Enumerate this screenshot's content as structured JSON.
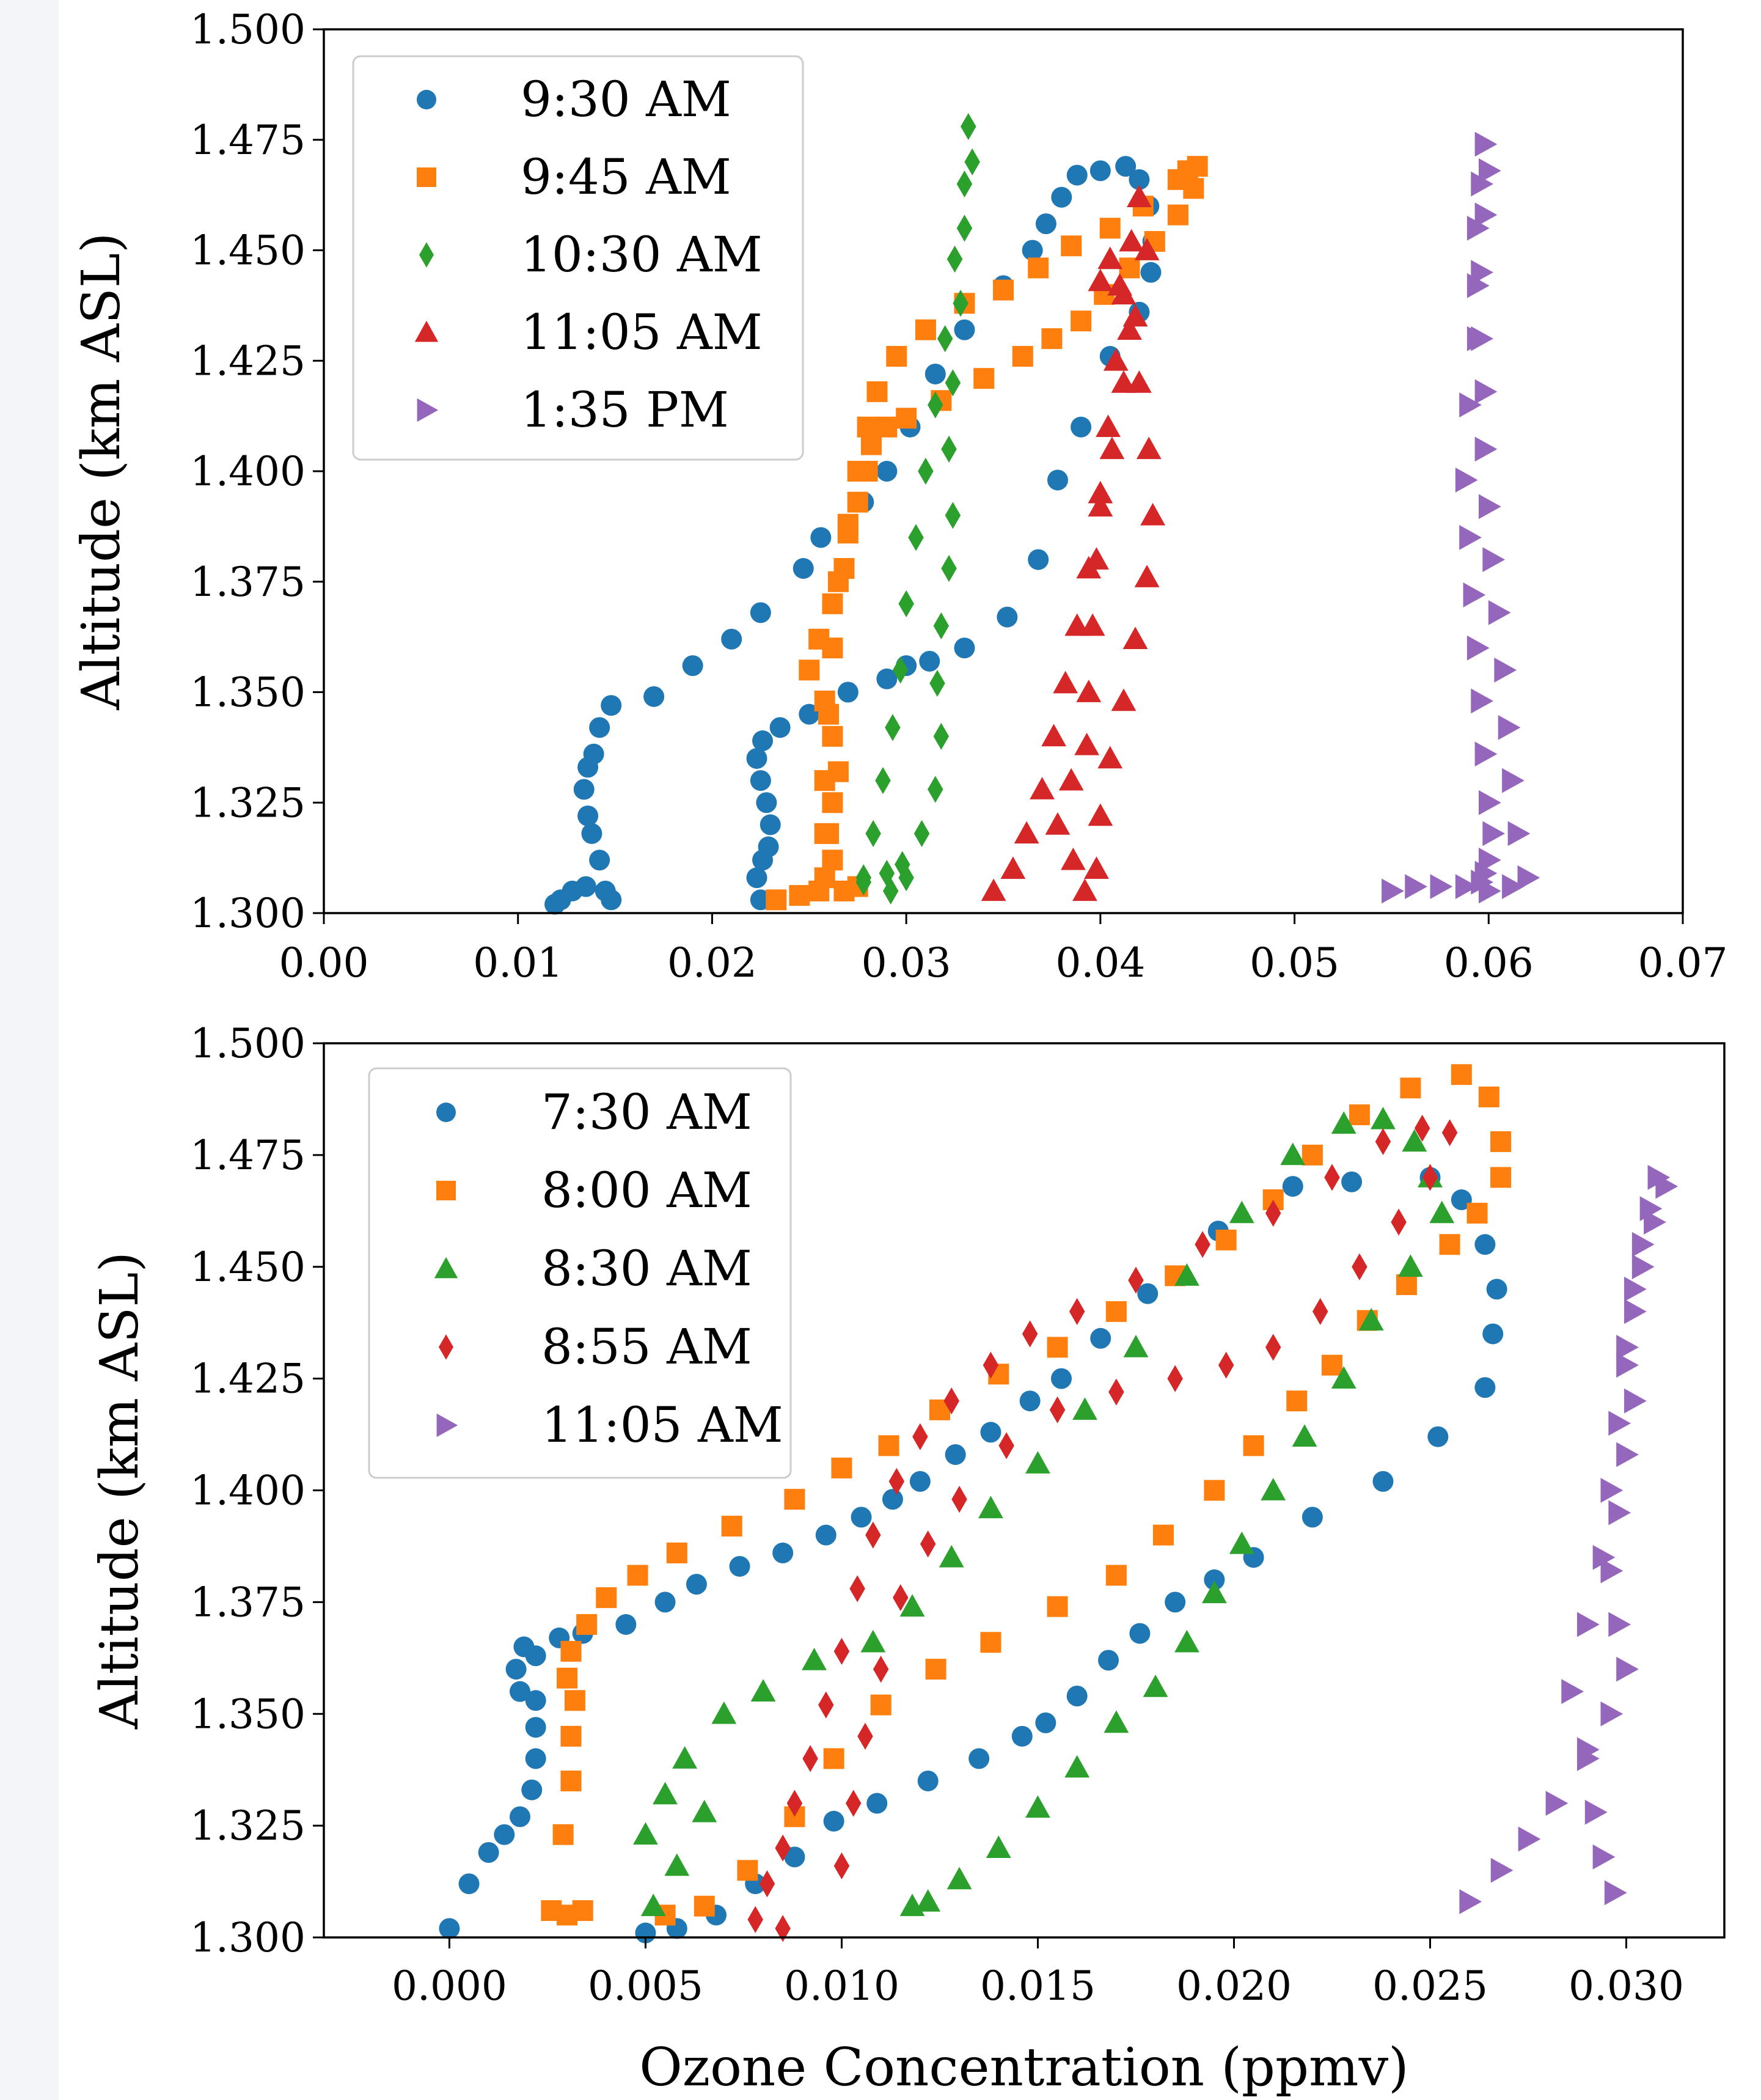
{
  "colors": {
    "blue": "#1f77b4",
    "orange": "#ff7f0e",
    "green": "#2ca02c",
    "red": "#d62728",
    "purple": "#9467bd"
  },
  "chart_data": [
    {
      "type": "scatter",
      "title": "",
      "xlabel": "",
      "ylabel": "Altitude (km ASL)",
      "xlim": [
        0.0,
        0.07
      ],
      "ylim": [
        1.3,
        1.5
      ],
      "xticks": [
        "0.00",
        "0.01",
        "0.02",
        "0.03",
        "0.04",
        "0.05",
        "0.06",
        "0.07"
      ],
      "yticks": [
        "1.300",
        "1.325",
        "1.350",
        "1.375",
        "1.400",
        "1.425",
        "1.450",
        "1.475",
        "1.500"
      ],
      "grid": false,
      "legend_position": "top-left",
      "series": [
        {
          "name": "9:30 AM",
          "marker": "circle",
          "color": "#1f77b4",
          "x": [
            0.0119,
            0.0122,
            0.0128,
            0.0135,
            0.0145,
            0.0148,
            0.0142,
            0.0138,
            0.0136,
            0.0134,
            0.0136,
            0.0139,
            0.0142,
            0.0148,
            0.017,
            0.019,
            0.021,
            0.0225,
            0.0247,
            0.0256,
            0.0278,
            0.029,
            0.0302,
            0.0315,
            0.033,
            0.035,
            0.0365,
            0.0372,
            0.038,
            0.0388,
            0.04,
            0.0413,
            0.042,
            0.0425,
            0.0427,
            0.0426,
            0.042,
            0.0405,
            0.039,
            0.0378,
            0.0368,
            0.0352,
            0.033,
            0.0312,
            0.03,
            0.029,
            0.027,
            0.025,
            0.0235,
            0.0226,
            0.0223,
            0.0225,
            0.0228,
            0.023,
            0.0229,
            0.0226,
            0.0223,
            0.0225
          ],
          "y": [
            1.302,
            1.303,
            1.305,
            1.306,
            1.305,
            1.303,
            1.312,
            1.318,
            1.322,
            1.328,
            1.333,
            1.336,
            1.342,
            1.347,
            1.349,
            1.356,
            1.362,
            1.368,
            1.378,
            1.385,
            1.393,
            1.4,
            1.41,
            1.422,
            1.432,
            1.442,
            1.45,
            1.456,
            1.462,
            1.467,
            1.468,
            1.469,
            1.466,
            1.46,
            1.452,
            1.445,
            1.436,
            1.426,
            1.41,
            1.398,
            1.38,
            1.367,
            1.36,
            1.357,
            1.356,
            1.353,
            1.35,
            1.345,
            1.342,
            1.339,
            1.335,
            1.33,
            1.325,
            1.32,
            1.315,
            1.312,
            1.308,
            1.303
          ]
        },
        {
          "name": "9:45 AM",
          "marker": "square",
          "color": "#ff7f0e",
          "x": [
            0.0233,
            0.0245,
            0.0255,
            0.0268,
            0.0275,
            0.0262,
            0.026,
            0.0262,
            0.0265,
            0.0262,
            0.0258,
            0.025,
            0.0255,
            0.0262,
            0.0268,
            0.027,
            0.0275,
            0.028,
            0.0282,
            0.029,
            0.03,
            0.0318,
            0.034,
            0.036,
            0.0375,
            0.039,
            0.0402,
            0.0415,
            0.0428,
            0.044,
            0.0448,
            0.045,
            0.0445,
            0.044,
            0.0422,
            0.0405,
            0.0385,
            0.0368,
            0.035,
            0.033,
            0.031,
            0.0295,
            0.0285,
            0.028,
            0.0275,
            0.027,
            0.0265,
            0.0262,
            0.026,
            0.0258,
            0.0258,
            0.0258
          ],
          "y": [
            1.303,
            1.304,
            1.305,
            1.305,
            1.306,
            1.312,
            1.318,
            1.325,
            1.332,
            1.34,
            1.348,
            1.355,
            1.362,
            1.37,
            1.378,
            1.386,
            1.393,
            1.4,
            1.406,
            1.41,
            1.412,
            1.416,
            1.421,
            1.426,
            1.43,
            1.434,
            1.44,
            1.446,
            1.452,
            1.458,
            1.464,
            1.469,
            1.468,
            1.466,
            1.46,
            1.455,
            1.451,
            1.446,
            1.441,
            1.438,
            1.432,
            1.426,
            1.418,
            1.41,
            1.4,
            1.388,
            1.375,
            1.36,
            1.345,
            1.33,
            1.318,
            1.308
          ]
        },
        {
          "name": "10:30 AM",
          "marker": "diamond",
          "color": "#2ca02c",
          "x": [
            0.0278,
            0.029,
            0.03,
            0.0292,
            0.0298,
            0.0308,
            0.0315,
            0.0318,
            0.0316,
            0.0318,
            0.0322,
            0.0324,
            0.0322,
            0.0324,
            0.0328,
            0.033,
            0.0334,
            0.0332,
            0.033,
            0.0325,
            0.032,
            0.0315,
            0.031,
            0.0305,
            0.03,
            0.0297,
            0.0293,
            0.0288,
            0.0283,
            0.0278
          ],
          "y": [
            1.307,
            1.309,
            1.308,
            1.305,
            1.311,
            1.318,
            1.328,
            1.34,
            1.352,
            1.365,
            1.378,
            1.39,
            1.405,
            1.42,
            1.438,
            1.455,
            1.47,
            1.478,
            1.465,
            1.448,
            1.43,
            1.415,
            1.4,
            1.385,
            1.37,
            1.355,
            1.342,
            1.33,
            1.318,
            1.308
          ]
        },
        {
          "name": "11:05 AM",
          "marker": "triangle-up",
          "color": "#d62728",
          "x": [
            0.0345,
            0.0355,
            0.0362,
            0.037,
            0.0376,
            0.0382,
            0.0388,
            0.0394,
            0.04,
            0.0406,
            0.0412,
            0.0418,
            0.0424,
            0.042,
            0.0416,
            0.0412,
            0.0408,
            0.0404,
            0.04,
            0.0398,
            0.0396,
            0.0394,
            0.0393,
            0.0385,
            0.0378,
            0.0386,
            0.0392,
            0.0398,
            0.04,
            0.0405,
            0.0412,
            0.0418,
            0.0424,
            0.0427,
            0.0425,
            0.042,
            0.0415,
            0.041,
            0.0405,
            0.04
          ],
          "y": [
            1.305,
            1.31,
            1.318,
            1.328,
            1.34,
            1.352,
            1.365,
            1.378,
            1.392,
            1.405,
            1.42,
            1.435,
            1.45,
            1.462,
            1.452,
            1.44,
            1.425,
            1.41,
            1.395,
            1.38,
            1.365,
            1.35,
            1.338,
            1.33,
            1.32,
            1.312,
            1.305,
            1.31,
            1.322,
            1.335,
            1.348,
            1.362,
            1.376,
            1.39,
            1.405,
            1.42,
            1.432,
            1.442,
            1.448,
            1.443
          ]
        },
        {
          "name": "1:35 PM",
          "marker": "triangle-right",
          "color": "#9467bd",
          "x": [
            0.055,
            0.0562,
            0.0575,
            0.0588,
            0.06,
            0.0612,
            0.062,
            0.0615,
            0.0612,
            0.061,
            0.0608,
            0.0605,
            0.0602,
            0.06,
            0.0598,
            0.0598,
            0.0596,
            0.0594,
            0.0594,
            0.0596,
            0.0598,
            0.06,
            0.0598,
            0.0596,
            0.0594,
            0.059,
            0.0588,
            0.059,
            0.0592,
            0.0594,
            0.0596,
            0.0598,
            0.06,
            0.0602,
            0.06,
            0.0598,
            0.0596
          ],
          "y": [
            1.305,
            1.306,
            1.306,
            1.306,
            1.305,
            1.306,
            1.308,
            1.318,
            1.33,
            1.342,
            1.355,
            1.368,
            1.38,
            1.392,
            1.405,
            1.418,
            1.43,
            1.442,
            1.455,
            1.465,
            1.474,
            1.468,
            1.458,
            1.445,
            1.43,
            1.415,
            1.398,
            1.385,
            1.372,
            1.36,
            1.348,
            1.336,
            1.325,
            1.318,
            1.312,
            1.309,
            1.307
          ]
        }
      ]
    },
    {
      "type": "scatter",
      "title": "",
      "xlabel": "Ozone Concentration (ppmv)",
      "ylabel": "Altitude (km ASL)",
      "xlim": [
        -0.0032,
        0.0325
      ],
      "ylim": [
        1.3,
        1.5
      ],
      "xticks": [
        "0.000",
        "0.005",
        "0.010",
        "0.015",
        "0.020",
        "0.025",
        "0.030"
      ],
      "yticks": [
        "1.300",
        "1.325",
        "1.350",
        "1.375",
        "1.400",
        "1.425",
        "1.450",
        "1.475",
        "1.500"
      ],
      "grid": false,
      "legend_position": "top-left",
      "series": [
        {
          "name": "7:30 AM",
          "marker": "circle",
          "color": "#1f77b4",
          "x": [
            0.0,
            0.0005,
            0.001,
            0.0014,
            0.0018,
            0.0021,
            0.0022,
            0.0022,
            0.0022,
            0.0018,
            0.0017,
            0.0019,
            0.0022,
            0.0028,
            0.0034,
            0.0045,
            0.0055,
            0.0063,
            0.0074,
            0.0085,
            0.0096,
            0.0105,
            0.0113,
            0.012,
            0.0129,
            0.0138,
            0.0148,
            0.0156,
            0.0166,
            0.0178,
            0.0196,
            0.0215,
            0.023,
            0.025,
            0.0258,
            0.0264,
            0.0267,
            0.0266,
            0.0264,
            0.0252,
            0.0238,
            0.022,
            0.0205,
            0.0195,
            0.0185,
            0.0176,
            0.0168,
            0.016,
            0.0152,
            0.0146,
            0.0135,
            0.0122,
            0.0109,
            0.0098,
            0.0088,
            0.0078,
            0.0068,
            0.0058,
            0.005
          ],
          "y": [
            1.302,
            1.312,
            1.319,
            1.323,
            1.327,
            1.333,
            1.34,
            1.347,
            1.353,
            1.355,
            1.36,
            1.365,
            1.363,
            1.367,
            1.368,
            1.37,
            1.375,
            1.379,
            1.383,
            1.386,
            1.39,
            1.394,
            1.398,
            1.402,
            1.408,
            1.413,
            1.42,
            1.425,
            1.434,
            1.444,
            1.458,
            1.468,
            1.469,
            1.47,
            1.465,
            1.455,
            1.445,
            1.435,
            1.423,
            1.412,
            1.402,
            1.394,
            1.385,
            1.38,
            1.375,
            1.368,
            1.362,
            1.354,
            1.348,
            1.345,
            1.34,
            1.335,
            1.33,
            1.326,
            1.318,
            1.312,
            1.305,
            1.302,
            1.301
          ]
        },
        {
          "name": "8:00 AM",
          "marker": "square",
          "color": "#ff7f0e",
          "x": [
            0.0026,
            0.003,
            0.0034,
            0.0029,
            0.0031,
            0.0031,
            0.0032,
            0.003,
            0.0031,
            0.0035,
            0.004,
            0.0048,
            0.0058,
            0.0072,
            0.0088,
            0.01,
            0.0112,
            0.0125,
            0.014,
            0.0155,
            0.017,
            0.0185,
            0.0198,
            0.021,
            0.022,
            0.0232,
            0.0245,
            0.0258,
            0.0265,
            0.0268,
            0.0268,
            0.0262,
            0.0255,
            0.0244,
            0.0234,
            0.0225,
            0.0216,
            0.0205,
            0.0195,
            0.0182,
            0.017,
            0.0155,
            0.0138,
            0.0124,
            0.011,
            0.0098,
            0.0088,
            0.0076,
            0.0065,
            0.0055
          ],
          "y": [
            1.306,
            1.305,
            1.306,
            1.323,
            1.335,
            1.345,
            1.353,
            1.358,
            1.364,
            1.37,
            1.376,
            1.381,
            1.386,
            1.392,
            1.398,
            1.405,
            1.41,
            1.418,
            1.426,
            1.432,
            1.44,
            1.448,
            1.456,
            1.465,
            1.475,
            1.484,
            1.49,
            1.493,
            1.488,
            1.478,
            1.47,
            1.462,
            1.455,
            1.446,
            1.438,
            1.428,
            1.42,
            1.41,
            1.4,
            1.39,
            1.381,
            1.374,
            1.366,
            1.36,
            1.352,
            1.34,
            1.327,
            1.315,
            1.307,
            1.305
          ]
        },
        {
          "name": "8:30 AM",
          "marker": "triangle-up",
          "color": "#2ca02c",
          "x": [
            0.005,
            0.0055,
            0.006,
            0.007,
            0.008,
            0.0093,
            0.0108,
            0.0118,
            0.0128,
            0.0138,
            0.015,
            0.0162,
            0.0175,
            0.0188,
            0.0202,
            0.0215,
            0.0228,
            0.0238,
            0.0246,
            0.025,
            0.0253,
            0.0245,
            0.0235,
            0.0228,
            0.0218,
            0.021,
            0.0202,
            0.0195,
            0.0188,
            0.018,
            0.017,
            0.016,
            0.015,
            0.014,
            0.013,
            0.0122,
            0.0118,
            0.0052,
            0.0058,
            0.0065
          ],
          "y": [
            1.323,
            1.332,
            1.34,
            1.35,
            1.355,
            1.362,
            1.366,
            1.374,
            1.385,
            1.396,
            1.406,
            1.418,
            1.432,
            1.448,
            1.462,
            1.475,
            1.482,
            1.483,
            1.478,
            1.47,
            1.462,
            1.45,
            1.438,
            1.425,
            1.412,
            1.4,
            1.388,
            1.377,
            1.366,
            1.356,
            1.348,
            1.338,
            1.329,
            1.32,
            1.313,
            1.308,
            1.307,
            1.307,
            1.316,
            1.328
          ]
        },
        {
          "name": "8:55 AM",
          "marker": "diamond",
          "color": "#d62728",
          "x": [
            0.0078,
            0.0081,
            0.0085,
            0.0088,
            0.0092,
            0.0096,
            0.01,
            0.0104,
            0.0108,
            0.0114,
            0.012,
            0.0128,
            0.0138,
            0.0148,
            0.016,
            0.0175,
            0.0192,
            0.021,
            0.0225,
            0.0238,
            0.0248,
            0.0255,
            0.025,
            0.0242,
            0.0232,
            0.0222,
            0.021,
            0.0198,
            0.0185,
            0.017,
            0.0155,
            0.0142,
            0.013,
            0.0122,
            0.0115,
            0.011,
            0.0106,
            0.0103,
            0.01,
            0.0085
          ],
          "y": [
            1.304,
            1.312,
            1.32,
            1.33,
            1.34,
            1.352,
            1.364,
            1.378,
            1.39,
            1.402,
            1.412,
            1.42,
            1.428,
            1.435,
            1.44,
            1.447,
            1.455,
            1.462,
            1.47,
            1.478,
            1.481,
            1.48,
            1.47,
            1.46,
            1.45,
            1.44,
            1.432,
            1.428,
            1.425,
            1.422,
            1.418,
            1.41,
            1.398,
            1.388,
            1.376,
            1.36,
            1.345,
            1.33,
            1.316,
            1.302
          ]
        },
        {
          "name": "11:05 AM",
          "marker": "triangle-right",
          "color": "#9467bd",
          "x": [
            0.026,
            0.0268,
            0.0275,
            0.0282,
            0.029,
            0.0296,
            0.03,
            0.0298,
            0.0296,
            0.0298,
            0.03,
            0.0302,
            0.03,
            0.0302,
            0.0304,
            0.0306,
            0.0308,
            0.031,
            0.0307,
            0.0304,
            0.0302,
            0.03,
            0.0298,
            0.0296,
            0.0294,
            0.029,
            0.0286,
            0.029,
            0.0292,
            0.0294,
            0.0297
          ],
          "y": [
            1.308,
            1.315,
            1.322,
            1.33,
            1.34,
            1.35,
            1.36,
            1.37,
            1.382,
            1.395,
            1.408,
            1.42,
            1.432,
            1.445,
            1.455,
            1.463,
            1.47,
            1.468,
            1.46,
            1.45,
            1.44,
            1.428,
            1.415,
            1.4,
            1.385,
            1.37,
            1.355,
            1.342,
            1.328,
            1.318,
            1.31
          ]
        }
      ]
    }
  ]
}
